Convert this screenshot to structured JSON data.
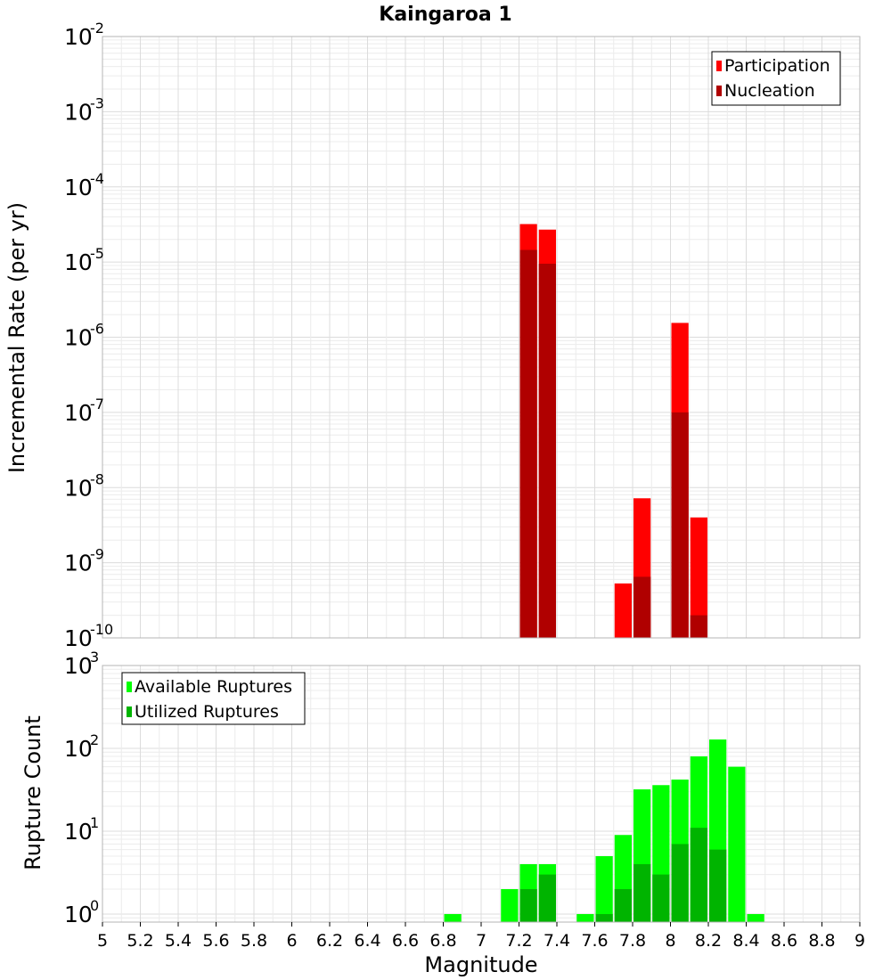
{
  "chart_data": [
    {
      "type": "bar",
      "title": "Kaingaroa 1",
      "xlabel": "",
      "ylabel": "Incremental Rate (per yr)",
      "xlim": [
        5,
        9
      ],
      "ylim": [
        1e-10,
        0.01
      ],
      "y_scale": "log",
      "grid": true,
      "legend_position": "top-right",
      "y_ticks": [
        {
          "base": "10",
          "exp": "-10"
        },
        {
          "base": "10",
          "exp": "-9"
        },
        {
          "base": "10",
          "exp": "-8"
        },
        {
          "base": "10",
          "exp": "-7"
        },
        {
          "base": "10",
          "exp": "-6"
        },
        {
          "base": "10",
          "exp": "-5"
        },
        {
          "base": "10",
          "exp": "-4"
        },
        {
          "base": "10",
          "exp": "-3"
        },
        {
          "base": "10",
          "exp": "-2"
        }
      ],
      "bin_width": 0.1,
      "series": [
        {
          "name": "Participation",
          "color": "#ff0000",
          "x": [
            7.25,
            7.35,
            7.75,
            7.85,
            8.05,
            8.15
          ],
          "values": [
            3.2e-05,
            2.7e-05,
            5.3e-10,
            7.2e-09,
            1.55e-06,
            4e-09
          ]
        },
        {
          "name": "Nucleation",
          "color": "#b00000",
          "x": [
            7.25,
            7.35,
            7.85,
            8.05,
            8.15
          ],
          "values": [
            1.45e-05,
            9.5e-06,
            6.5e-10,
            1e-07,
            2e-10
          ]
        }
      ]
    },
    {
      "type": "bar",
      "title": "",
      "xlabel": "Magnitude",
      "ylabel": "Rupture Count",
      "xlim": [
        5,
        9
      ],
      "ylim": [
        0.8,
        1000
      ],
      "y_scale": "log",
      "grid": true,
      "legend_position": "top-left",
      "y_ticks": [
        {
          "base": "10",
          "exp": "0"
        },
        {
          "base": "10",
          "exp": "1"
        },
        {
          "base": "10",
          "exp": "2"
        },
        {
          "base": "10",
          "exp": "3"
        }
      ],
      "x_ticks": [
        "5",
        "5.2",
        "5.4",
        "5.6",
        "5.8",
        "6",
        "6.2",
        "6.4",
        "6.6",
        "6.8",
        "7",
        "7.2",
        "7.4",
        "7.6",
        "7.8",
        "8",
        "8.2",
        "8.4",
        "8.6",
        "8.8",
        "9"
      ],
      "bin_width": 0.1,
      "series": [
        {
          "name": "Available Ruptures",
          "color": "#00ff00",
          "x": [
            6.85,
            7.15,
            7.25,
            7.35,
            7.55,
            7.65,
            7.75,
            7.85,
            7.95,
            8.05,
            8.15,
            8.25,
            8.35,
            8.45
          ],
          "values": [
            1,
            2,
            4,
            4,
            1,
            5,
            9,
            32,
            36,
            42,
            80,
            128,
            60,
            1
          ]
        },
        {
          "name": "Utilized Ruptures",
          "color": "#00b400",
          "x": [
            7.25,
            7.35,
            7.65,
            7.75,
            7.85,
            7.95,
            8.05,
            8.15,
            8.25
          ],
          "values": [
            2,
            3,
            1,
            2,
            4,
            3,
            7,
            11,
            6
          ]
        }
      ]
    }
  ]
}
